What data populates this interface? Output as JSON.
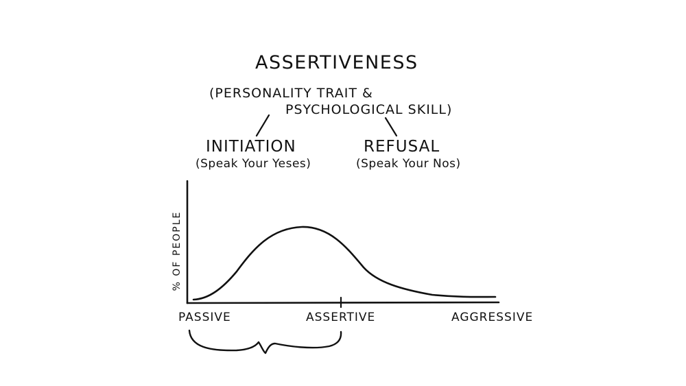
{
  "title": "ASSERTIVENESS",
  "subtitle": {
    "line1": "(PERSONALITY TRAIT &",
    "line2": "PSYCHOLOGICAL SKILL)"
  },
  "branches": {
    "initiation": {
      "label": "INITIATION",
      "description": "(Speak Your Yeses)"
    },
    "refusal": {
      "label": "REFUSAL",
      "description": "(Speak Your Nos)"
    }
  },
  "chart_data": {
    "type": "line",
    "ylabel": "% OF PEOPLE",
    "xlabel": "",
    "x_tick_labels": [
      "PASSIVE",
      "ASSERTIVE",
      "AGGRESSIVE"
    ],
    "grid": false,
    "legend": "none"
  },
  "colors": {
    "ink": "#111111",
    "background": "#ffffff"
  }
}
